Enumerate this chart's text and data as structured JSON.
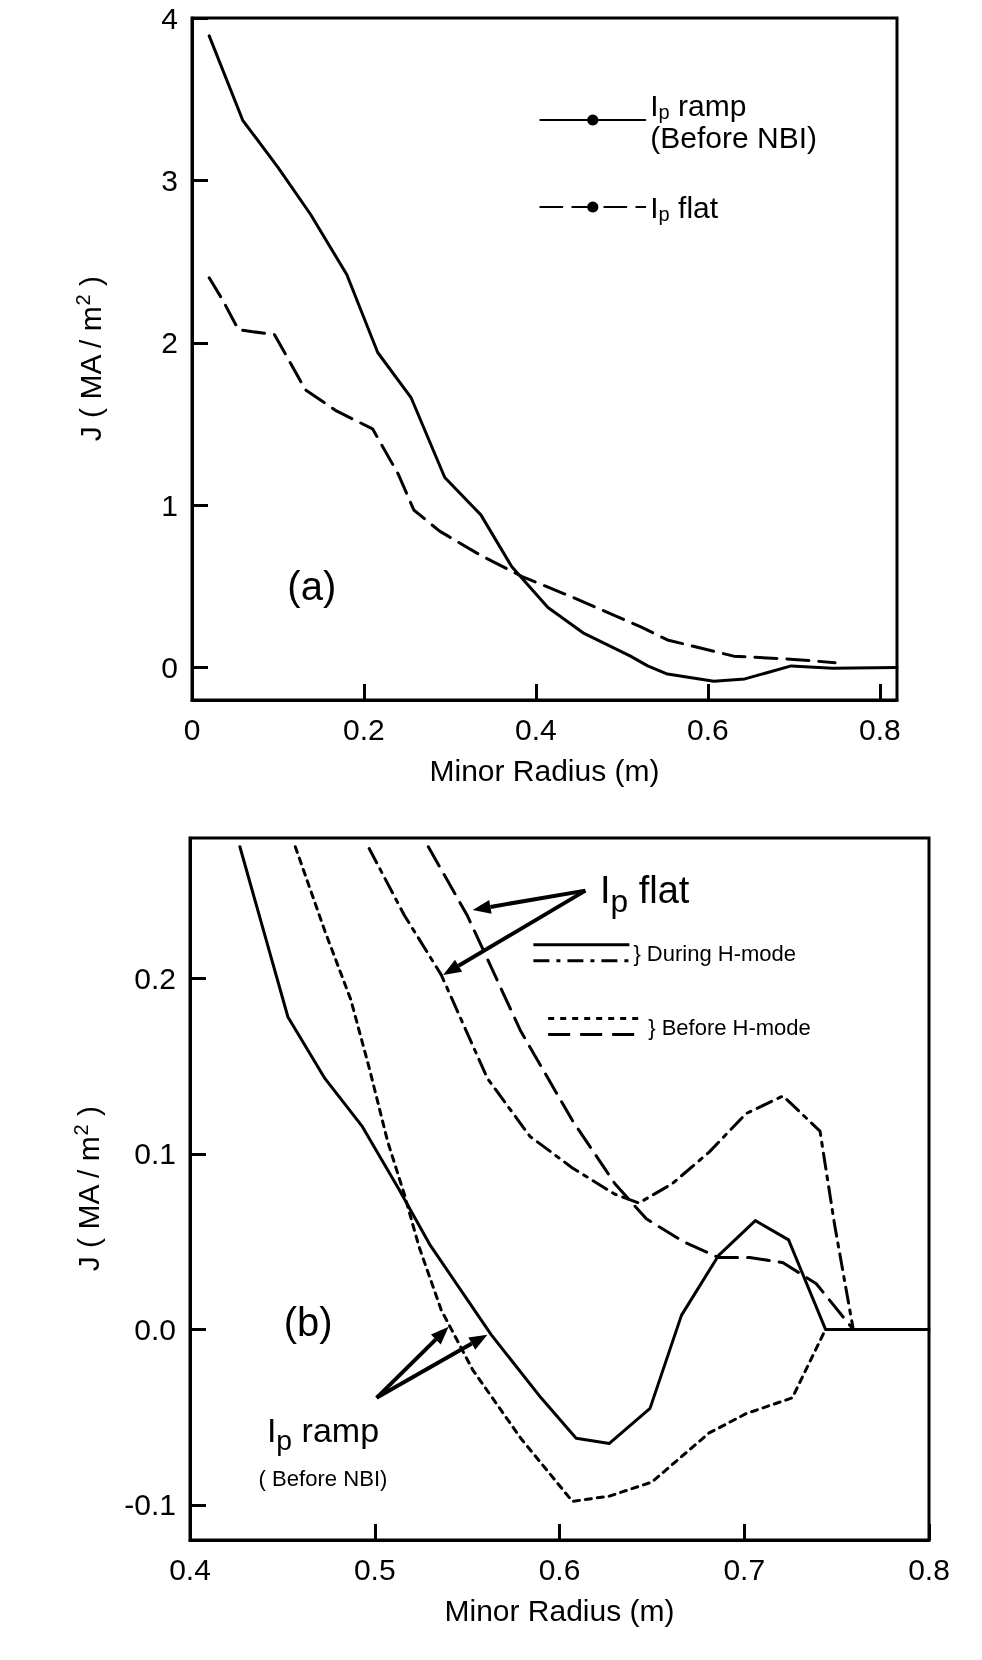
{
  "chart_data": [
    {
      "type": "line",
      "xlabel": "Minor Radius (m)",
      "ylabel": "J ( MA / m$^{2}$ )",
      "xlim": [
        0,
        0.82
      ],
      "ylim": [
        -0.2,
        4
      ],
      "xticks": [
        0,
        0.2,
        0.4,
        0.6,
        0.8
      ],
      "yticks": [
        0,
        1,
        2,
        3,
        4
      ],
      "legend": "top right",
      "marker": "none",
      "annotations": [
        "(a)"
      ],
      "series": [
        {
          "name": "I$_{p}$ ramp\n(Before NBI)",
          "color": "#000000",
          "line_style": "solid",
          "x": [
            0.02,
            0.059,
            0.1,
            0.138,
            0.18,
            0.216,
            0.255,
            0.294,
            0.336,
            0.372,
            0.414,
            0.456,
            0.51,
            0.53,
            0.553,
            0.607,
            0.643,
            0.697,
            0.745,
            0.82
          ],
          "values": [
            3.89,
            3.37,
            3.08,
            2.79,
            2.42,
            1.94,
            1.66,
            1.17,
            0.94,
            0.62,
            0.37,
            0.21,
            0.07,
            0.01,
            -0.04,
            -0.085,
            -0.07,
            0.01,
            -0.005,
            0
          ]
        },
        {
          "name": "I$_{p}$ flat",
          "color": "#000000",
          "line_style": "dashed",
          "x": [
            0.02,
            0.036,
            0.054,
            0.096,
            0.132,
            0.168,
            0.21,
            0.24,
            0.258,
            0.288,
            0.336,
            0.384,
            0.444,
            0.522,
            0.553,
            0.63,
            0.7,
            0.748
          ],
          "values": [
            2.4,
            2.26,
            2.08,
            2.05,
            1.71,
            1.58,
            1.47,
            1.19,
            0.97,
            0.84,
            0.69,
            0.56,
            0.43,
            0.25,
            0.17,
            0.07,
            0.05,
            0.03
          ]
        }
      ]
    },
    {
      "type": "line",
      "xlabel": "Minor Radius (m)",
      "ylabel": "J ( MA / m$^{2}$ )",
      "xlim": [
        0.4,
        0.8
      ],
      "ylim": [
        -0.12,
        0.28
      ],
      "xticks": [
        0.4,
        0.5,
        0.6,
        0.7,
        0.8
      ],
      "yticks": [
        -0.1,
        {
          "value": 0,
          "label": "0.0"
        },
        0.1,
        0.2
      ],
      "marker": "none",
      "annotations": [
        "(b)",
        "I$_{p}$ flat",
        "} During H-mode",
        "} Before H-mode",
        "I$_{p}$ ramp\n( Before NBI)"
      ],
      "series": [
        {
          "color": "#000000",
          "line_style": "solid",
          "x": [
            0.427,
            0.453,
            0.473,
            0.493,
            0.513,
            0.53,
            0.563,
            0.59,
            0.609,
            0.627,
            0.649,
            0.666,
            0.686,
            0.706,
            0.724,
            0.744,
            0.8
          ],
          "values": [
            0.275,
            0.178,
            0.143,
            0.116,
            0.08,
            0.048,
            -0.003,
            -0.039,
            -0.062,
            -0.065,
            -0.045,
            0.008,
            0.042,
            0.062,
            0.051,
            0,
            0
          ]
        },
        {
          "color": "#000000",
          "line_style": "dotted",
          "x": [
            0.457,
            0.473,
            0.487,
            0.497,
            0.507,
            0.516,
            0.524,
            0.536,
            0.553,
            0.579,
            0.607,
            0.627,
            0.65,
            0.681,
            0.701,
            0.726,
            0.744
          ],
          "values": [
            0.275,
            0.227,
            0.188,
            0.149,
            0.107,
            0.077,
            0.047,
            0.011,
            -0.023,
            -0.062,
            -0.098,
            -0.095,
            -0.087,
            -0.059,
            -0.048,
            -0.039,
            0
          ]
        },
        {
          "color": "#000000",
          "line_style": "dashdot",
          "x": [
            0.497,
            0.516,
            0.536,
            0.561,
            0.584,
            0.607,
            0.63,
            0.643,
            0.661,
            0.681,
            0.701,
            0.721,
            0.741,
            0.749,
            0.759,
            0.8
          ],
          "values": [
            0.274,
            0.236,
            0.202,
            0.143,
            0.11,
            0.092,
            0.077,
            0.072,
            0.083,
            0.101,
            0.123,
            0.133,
            0.113,
            0.059,
            0,
            0
          ]
        },
        {
          "color": "#000000",
          "line_style": "dashed",
          "x": [
            0.529,
            0.55,
            0.579,
            0.607,
            0.63,
            0.647,
            0.667,
            0.686,
            0.703,
            0.721,
            0.739,
            0.759
          ],
          "values": [
            0.275,
            0.236,
            0.17,
            0.119,
            0.083,
            0.063,
            0.05,
            0.041,
            0.041,
            0.038,
            0.026,
            0
          ]
        }
      ]
    }
  ]
}
